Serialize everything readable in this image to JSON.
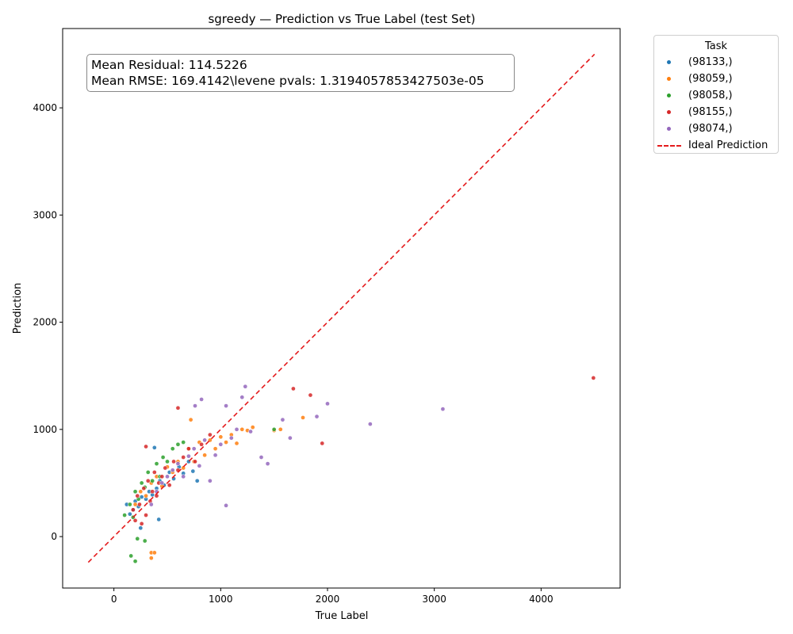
{
  "chart_data": {
    "type": "scatter",
    "title": "sgreedy — Prediction vs True Label (test Set)",
    "xlabel": "True Label",
    "ylabel": "Prediction",
    "xlim": [
      -480,
      4740
    ],
    "ylim": [
      -480,
      4740
    ],
    "x_ticks": [
      "0",
      "1000",
      "2000",
      "3000",
      "4000"
    ],
    "x_tick_values": [
      0,
      1000,
      2000,
      3000,
      4000
    ],
    "y_ticks": [
      "0",
      "1000",
      "2000",
      "3000",
      "4000"
    ],
    "y_tick_values": [
      0,
      1000,
      2000,
      3000,
      4000
    ],
    "grid": false,
    "legend_title": "Task",
    "legend_position": "outside-top-right",
    "ideal_line": {
      "label": "Ideal Prediction",
      "color": "#e41a1c",
      "x": [
        -240,
        4500
      ],
      "y": [
        -240,
        4500
      ]
    },
    "series": [
      {
        "name": "(98133,)",
        "color": "#1f77b4",
        "x": [
          120,
          150,
          180,
          200,
          230,
          260,
          300,
          330,
          360,
          400,
          430,
          470,
          520,
          560,
          610,
          650,
          700,
          740,
          780,
          380,
          420,
          250
        ],
        "y": [
          300,
          210,
          250,
          330,
          280,
          370,
          350,
          420,
          390,
          450,
          520,
          480,
          600,
          540,
          650,
          590,
          700,
          610,
          520,
          830,
          160,
          80
        ]
      },
      {
        "name": "(98059,)",
        "color": "#ff7f0e",
        "x": [
          200,
          250,
          300,
          350,
          400,
          450,
          500,
          550,
          600,
          650,
          700,
          750,
          800,
          850,
          900,
          950,
          1000,
          1050,
          1100,
          1150,
          1200,
          1250,
          1300,
          1500,
          1560,
          1770,
          350,
          380,
          350,
          720
        ],
        "y": [
          300,
          420,
          380,
          500,
          560,
          470,
          650,
          600,
          700,
          640,
          820,
          700,
          880,
          760,
          900,
          820,
          930,
          880,
          950,
          870,
          1000,
          990,
          1020,
          990,
          1000,
          1110,
          -150,
          -150,
          -200,
          1090
        ]
      },
      {
        "name": "(98058,)",
        "color": "#2ca02c",
        "x": [
          100,
          150,
          180,
          200,
          230,
          260,
          290,
          320,
          360,
          400,
          430,
          460,
          500,
          550,
          600,
          650,
          290,
          160,
          200,
          220,
          1500
        ],
        "y": [
          200,
          300,
          180,
          420,
          350,
          500,
          460,
          600,
          520,
          680,
          560,
          740,
          700,
          820,
          860,
          880,
          -40,
          -180,
          -230,
          -20,
          1000
        ]
      },
      {
        "name": "(98155,)",
        "color": "#d62728",
        "x": [
          180,
          200,
          220,
          240,
          260,
          280,
          300,
          320,
          340,
          360,
          380,
          400,
          420,
          450,
          480,
          520,
          560,
          600,
          650,
          700,
          760,
          820,
          900,
          1680,
          1840,
          1950,
          4490,
          300,
          600
        ],
        "y": [
          250,
          150,
          380,
          300,
          120,
          450,
          200,
          520,
          330,
          420,
          600,
          380,
          500,
          560,
          640,
          480,
          700,
          620,
          740,
          820,
          700,
          860,
          950,
          1380,
          1320,
          870,
          1480,
          840,
          1200
        ]
      },
      {
        "name": "(98074,)",
        "color": "#9467bd",
        "x": [
          350,
          400,
          450,
          500,
          550,
          600,
          650,
          700,
          750,
          800,
          850,
          900,
          950,
          1000,
          1050,
          1100,
          1150,
          1200,
          1230,
          1280,
          1380,
          1440,
          1580,
          1650,
          1900,
          2000,
          2400,
          3080,
          1050,
          820,
          760
        ],
        "y": [
          300,
          420,
          500,
          560,
          620,
          680,
          560,
          750,
          820,
          660,
          900,
          520,
          760,
          860,
          1220,
          920,
          1000,
          1300,
          1400,
          980,
          740,
          680,
          1090,
          920,
          1120,
          1240,
          1050,
          1190,
          290,
          1280,
          1220
        ]
      }
    ]
  },
  "stats": {
    "line1": "Mean Residual: 114.5226",
    "line2": "Mean RMSE: 169.4142\\levene pvals: 1.3194057853427503e-05"
  }
}
